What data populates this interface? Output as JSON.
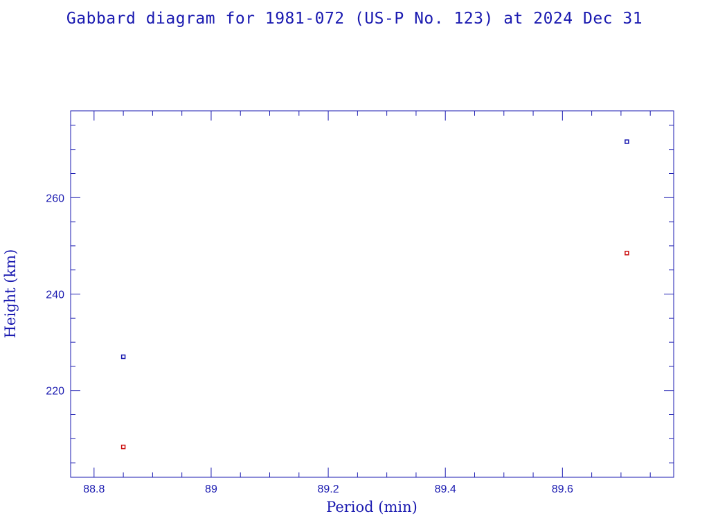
{
  "chart_data": {
    "type": "scatter",
    "title": "Gabbard diagram for 1981-072 (US-P No. 123) at 2024 Dec 31",
    "xlabel": "Period (min)",
    "ylabel": "Height (km)",
    "xlim": [
      88.76,
      89.79
    ],
    "ylim": [
      202,
      278
    ],
    "x_ticks": [
      88.8,
      89,
      89.2,
      89.4,
      89.6
    ],
    "x_tick_labels": [
      "88.8",
      "89",
      "89.2",
      "89.4",
      "89.6"
    ],
    "y_ticks": [
      220,
      240,
      260
    ],
    "y_tick_labels": [
      "220",
      "240",
      "260"
    ],
    "series": [
      {
        "role": "apogee",
        "color": "#1a1ab0",
        "points": [
          {
            "x": 88.85,
            "y": 227.0
          },
          {
            "x": 89.71,
            "y": 271.6
          }
        ]
      },
      {
        "role": "perigee",
        "color": "#cc1111",
        "points": [
          {
            "x": 88.85,
            "y": 208.3
          },
          {
            "x": 89.71,
            "y": 248.5
          }
        ]
      }
    ],
    "grid": false,
    "legend": "none"
  }
}
